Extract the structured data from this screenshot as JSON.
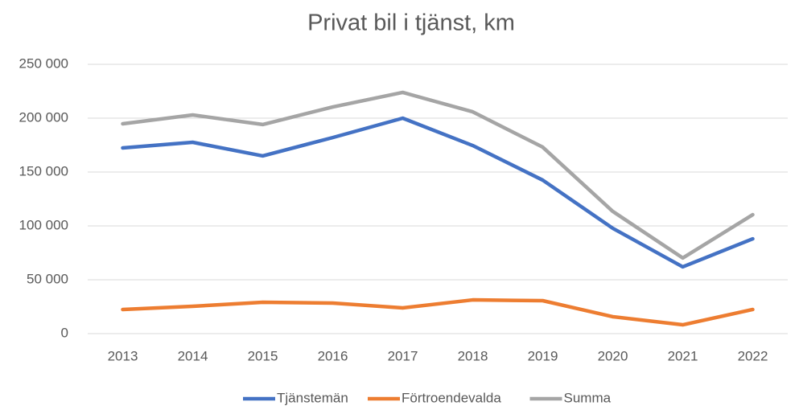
{
  "chart_data": {
    "type": "line",
    "title": "Privat bil i tjänst, km",
    "categories": [
      "2013",
      "2014",
      "2015",
      "2016",
      "2017",
      "2018",
      "2019",
      "2020",
      "2021",
      "2022"
    ],
    "series": [
      {
        "name": "Tjänstemän",
        "color": "#4472c4",
        "values": [
          172400,
          177600,
          165000,
          182000,
          200000,
          174600,
          142500,
          97800,
          62000,
          88000
        ]
      },
      {
        "name": "Förtroendevalda",
        "color": "#ed7d31",
        "values": [
          22400,
          25400,
          29100,
          28400,
          23900,
          31300,
          30600,
          15700,
          8200,
          22400
        ]
      },
      {
        "name": "Summa",
        "color": "#a5a5a5",
        "values": [
          194800,
          203000,
          194100,
          210400,
          223900,
          205900,
          173100,
          113500,
          70200,
          110400
        ]
      }
    ],
    "ylim": [
      0,
      250000
    ],
    "yticks": [
      0,
      {
        "value": 50000,
        "label": "50 000"
      },
      {
        "value": 100000,
        "label": "100 000"
      },
      {
        "value": 150000,
        "label": "150 000"
      },
      {
        "value": 200000,
        "label": "200 000"
      },
      {
        "value": 250000,
        "label": "250 000"
      }
    ],
    "grid": true,
    "legend": "bottom"
  }
}
